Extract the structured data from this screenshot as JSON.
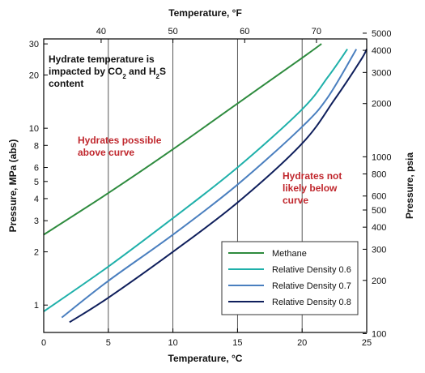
{
  "chart_data": {
    "type": "line",
    "x": {
      "label": "Temperature, °C",
      "range": [
        0,
        25
      ],
      "ticks": [
        0,
        5,
        10,
        15,
        20,
        25
      ]
    },
    "x_top": {
      "label": "Temperature, °F",
      "ticks": [
        40,
        50,
        60,
        70
      ]
    },
    "y_left": {
      "label": "Pressure, MPa (abs)",
      "scale": "log",
      "range": [
        0.7,
        32
      ],
      "ticks": [
        1,
        2,
        3,
        4,
        5,
        6,
        8,
        10,
        20,
        30
      ],
      "tick_labels": [
        "1",
        "2",
        "3",
        "4",
        "5",
        "6",
        "8",
        "10",
        "20",
        "30"
      ]
    },
    "y_right": {
      "label": "Pressure, psia",
      "scale": "log",
      "ticks": [
        100,
        200,
        300,
        400,
        500,
        600,
        800,
        1000,
        2000,
        3000,
        4000,
        5000
      ],
      "tick_labels": [
        "100",
        "200",
        "300",
        "400",
        "500",
        "600",
        "800",
        "1000",
        "2000",
        "3000",
        "4000",
        "5000"
      ]
    },
    "grid": {
      "vertical": true,
      "horizontal": false
    },
    "series": [
      {
        "name": "Methane",
        "color": "#2e8b3e",
        "points": [
          [
            0,
            2.5
          ],
          [
            5,
            4.3
          ],
          [
            10,
            7.6
          ],
          [
            15,
            13.8
          ],
          [
            20,
            25.0
          ],
          [
            21.5,
            30.0
          ]
        ]
      },
      {
        "name": "Relative Density 0.6",
        "color": "#1fb0aa",
        "points": [
          [
            0,
            0.92
          ],
          [
            5,
            1.65
          ],
          [
            10,
            3.1
          ],
          [
            15,
            6.0
          ],
          [
            20,
            12.8
          ],
          [
            22,
            19.5
          ],
          [
            23.5,
            28.0
          ]
        ]
      },
      {
        "name": "Relative Density 0.7",
        "color": "#4a7fbf",
        "points": [
          [
            1.4,
            0.85
          ],
          [
            5,
            1.37
          ],
          [
            10,
            2.5
          ],
          [
            15,
            4.8
          ],
          [
            20,
            10.2
          ],
          [
            22,
            15.0
          ],
          [
            24.2,
            28.0
          ]
        ]
      },
      {
        "name": "Relative Density 0.8",
        "color": "#0f1f5c",
        "points": [
          [
            2,
            0.8
          ],
          [
            5,
            1.1
          ],
          [
            10,
            2.0
          ],
          [
            15,
            3.8
          ],
          [
            20,
            8.2
          ],
          [
            22.5,
            14.5
          ],
          [
            24.5,
            24.0
          ],
          [
            25,
            28.0
          ]
        ]
      }
    ],
    "legend": {
      "position": "bottom-right",
      "items": [
        "Methane",
        "Relative Density 0.6",
        "Relative Density 0.7",
        "Relative Density 0.8"
      ]
    },
    "annotations": [
      {
        "id": "note-title",
        "lines": [
          "Hydrate temperature is",
          "impacted by CO₂ and H₂S",
          "content"
        ],
        "color": "#111111"
      },
      {
        "id": "note-above",
        "lines": [
          "Hydrates possible",
          "above curve"
        ],
        "color": "#c0272d"
      },
      {
        "id": "note-below",
        "lines": [
          "Hydrates not",
          "likely below",
          "curve"
        ],
        "color": "#c0272d"
      }
    ]
  }
}
